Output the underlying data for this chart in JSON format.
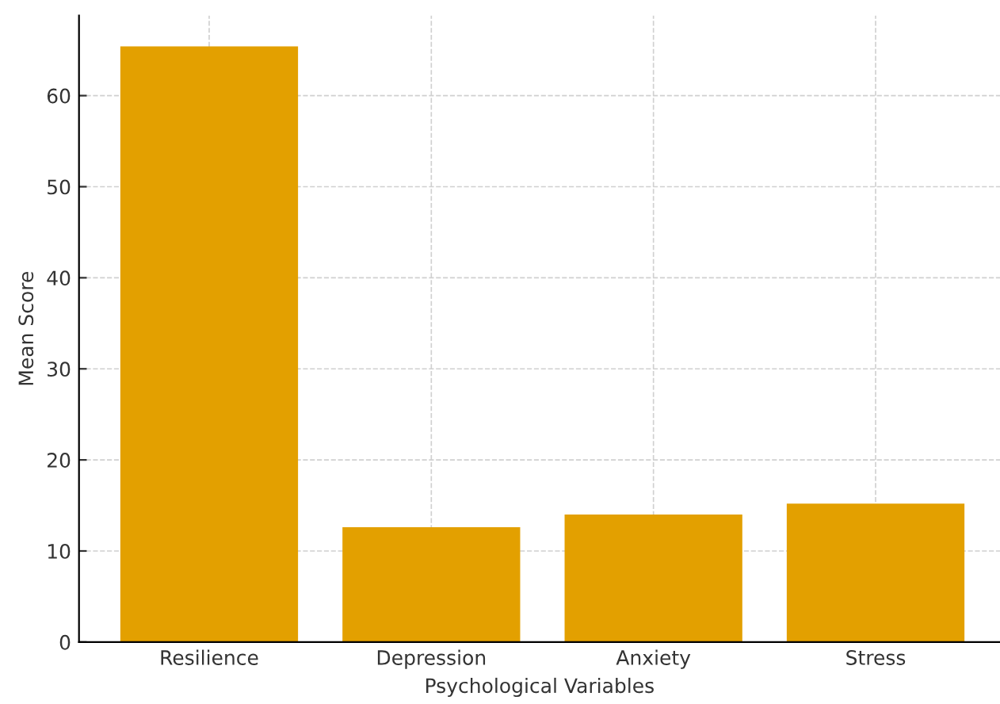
{
  "chart_data": {
    "type": "bar",
    "xlabel": "Psychological Variables",
    "ylabel": "Mean Score",
    "categories": [
      "Resilience",
      "Depression",
      "Anxiety",
      "Stress"
    ],
    "values": [
      65.4,
      12.6,
      14.0,
      15.2
    ],
    "color": "#e3a000",
    "ylim": [
      0,
      68.8
    ],
    "yticks": [
      0,
      10,
      20,
      30,
      40,
      50,
      60
    ],
    "grid": true
  }
}
